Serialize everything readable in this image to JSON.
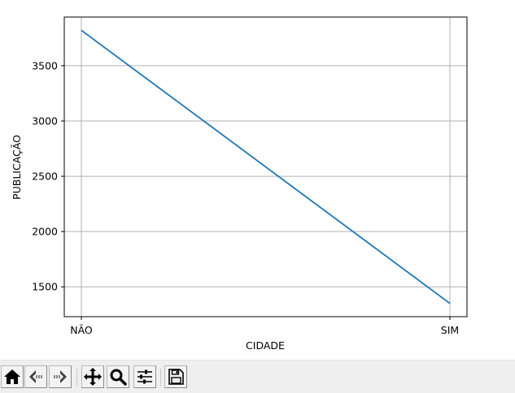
{
  "window": {
    "background": "#ffffff",
    "toolbar_background": "#efefef"
  },
  "toolbar": {
    "buttons": [
      {
        "name": "home",
        "icon": "home-icon"
      },
      {
        "name": "back",
        "icon": "back-arrow-icon"
      },
      {
        "name": "forward",
        "icon": "forward-arrow-icon"
      },
      {
        "name": "pan",
        "icon": "pan-move-icon"
      },
      {
        "name": "zoom",
        "icon": "zoom-magnifier-icon"
      },
      {
        "name": "configure-subplots",
        "icon": "sliders-icon"
      },
      {
        "name": "save",
        "icon": "floppy-save-icon"
      }
    ]
  },
  "chart_data": {
    "type": "line",
    "title": "",
    "xlabel": "CIDADE",
    "ylabel": "PUBLICAÇÃO",
    "categories": [
      "NÃO",
      "SIM"
    ],
    "series": [
      {
        "values": [
          3820,
          1350
        ],
        "color": "#1f77b4"
      }
    ],
    "ylim": [
      1230,
      3940
    ],
    "yticks": [
      1500,
      2000,
      2500,
      3000,
      3500
    ],
    "grid": true,
    "grid_color": "#b0b0b0",
    "legend": "none"
  }
}
